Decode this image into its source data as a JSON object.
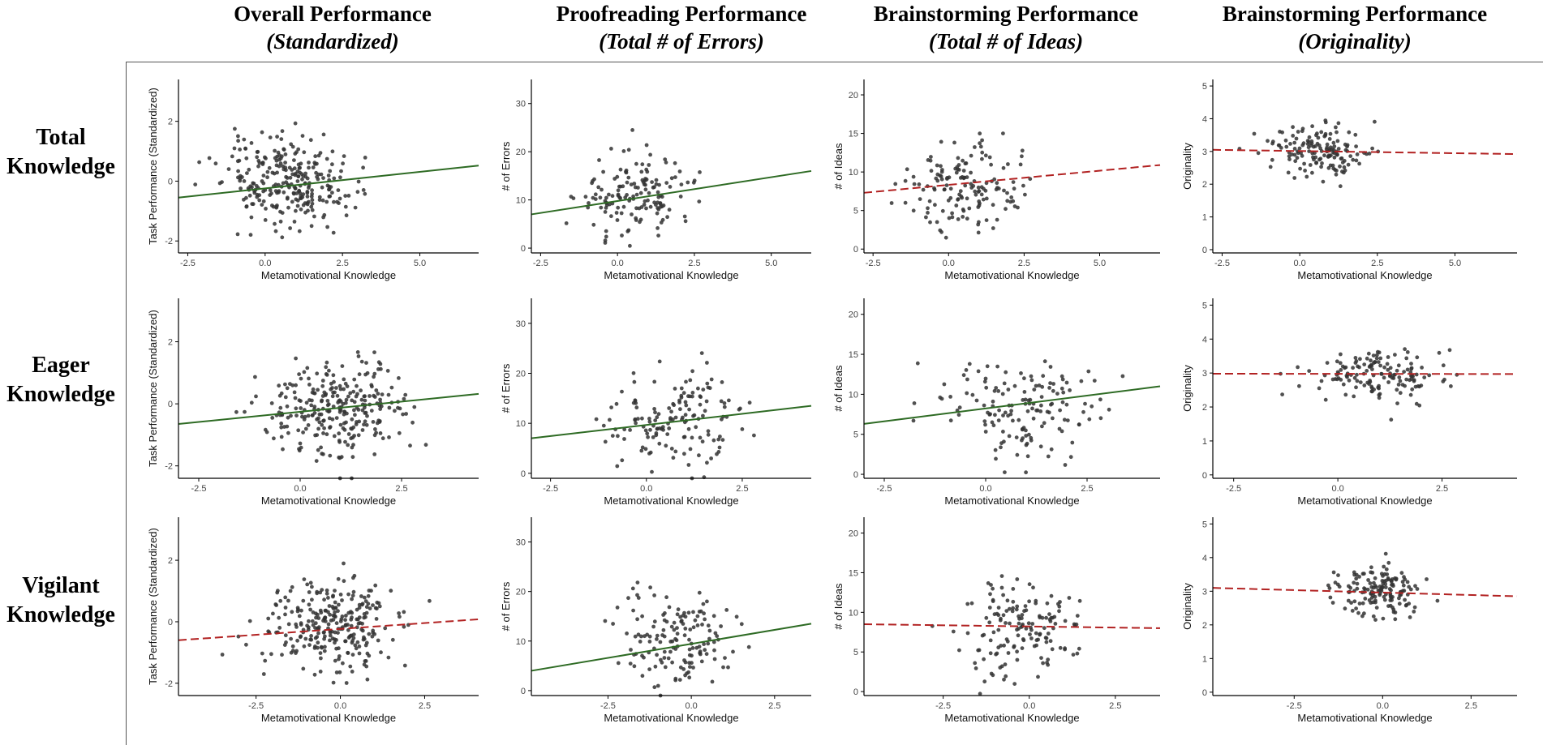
{
  "column_headers": [
    {
      "line1": "Overall Performance",
      "line2": "(Standardized)"
    },
    {
      "line1": "Proofreading Performance",
      "line2": "(Total # of Errors)"
    },
    {
      "line1": "Brainstorming Performance",
      "line2": "(Total # of Ideas)"
    },
    {
      "line1": "Brainstorming Performance",
      "line2": "(Originality)"
    }
  ],
  "row_headers": [
    {
      "line1": "Total",
      "line2": "Knowledge"
    },
    {
      "line1": "Eager",
      "line2": "Knowledge"
    },
    {
      "line1": "Vigilant",
      "line2": "Knowledge"
    }
  ],
  "colors": {
    "significant": "#2e6b24",
    "nonsignificant": "#b22222",
    "point": "#333333",
    "axis": "#000000"
  },
  "chart_data": [
    {
      "id": "r0c0",
      "type": "scatter",
      "row": 0,
      "col": 0,
      "xlabel": "Metamotivational Knowledge",
      "ylabel": "Task Performance (Standardized)",
      "xlim": [
        -2.8,
        6.9
      ],
      "ylim": [
        -2.4,
        3.4
      ],
      "xticks": [
        -2.5,
        0,
        2.5,
        5
      ],
      "xtick_labels": [
        "-2.5",
        "0.0",
        "2.5",
        "5.0"
      ],
      "yticks": [
        -2,
        0,
        2
      ],
      "ytick_labels": [
        "-2",
        "0",
        "2"
      ],
      "fit": {
        "x": [
          -2.8,
          6.9
        ],
        "y": [
          -0.55,
          0.52
        ],
        "style": "solid",
        "significant": true
      },
      "n": 280,
      "xmean": 0.7,
      "xsd": 1.3,
      "ymean": -0.05,
      "ysd": 1.0,
      "seed": 11
    },
    {
      "id": "r0c1",
      "type": "scatter",
      "row": 0,
      "col": 1,
      "xlabel": "Metamotivational Knowledge",
      "ylabel": "# of Errors",
      "xlim": [
        -2.8,
        6.3
      ],
      "ylim": [
        -1,
        35
      ],
      "xticks": [
        -2.5,
        0,
        2.5,
        5
      ],
      "xtick_labels": [
        "-2.5",
        "0.0",
        "2.5",
        "5.0"
      ],
      "yticks": [
        0,
        10,
        20,
        30
      ],
      "ytick_labels": [
        "0",
        "10",
        "20",
        "30"
      ],
      "fit": {
        "x": [
          -2.8,
          6.3
        ],
        "y": [
          7.0,
          16.0
        ],
        "style": "solid",
        "significant": true
      },
      "n": 150,
      "xmean": 0.6,
      "xsd": 1.2,
      "ymean": 11,
      "ysd": 6,
      "seed": 23
    },
    {
      "id": "r0c2",
      "type": "scatter",
      "row": 0,
      "col": 2,
      "xlabel": "Metamotivational Knowledge",
      "ylabel": "# of Ideas",
      "xlim": [
        -2.8,
        7.0
      ],
      "ylim": [
        -0.5,
        22
      ],
      "xticks": [
        -2.5,
        0,
        2.5,
        5
      ],
      "xtick_labels": [
        "-2.5",
        "0.0",
        "2.5",
        "5.0"
      ],
      "yticks": [
        0,
        5,
        10,
        15,
        20
      ],
      "ytick_labels": [
        "0",
        "5",
        "10",
        "15",
        "20"
      ],
      "fit": {
        "x": [
          -2.8,
          7.0
        ],
        "y": [
          7.3,
          10.9
        ],
        "style": "dashed",
        "significant": false
      },
      "n": 150,
      "xmean": 0.6,
      "xsd": 1.2,
      "ymean": 8,
      "ysd": 4,
      "seed": 37
    },
    {
      "id": "r0c3",
      "type": "scatter",
      "row": 0,
      "col": 3,
      "xlabel": "Metamotivational Knowledge",
      "ylabel": "Originality",
      "xlim": [
        -2.8,
        7.0
      ],
      "ylim": [
        -0.1,
        5.2
      ],
      "xticks": [
        -2.5,
        0,
        2.5,
        5
      ],
      "xtick_labels": [
        "-2.5",
        "0.0",
        "2.5",
        "5.0"
      ],
      "yticks": [
        0,
        1,
        2,
        3,
        4,
        5
      ],
      "ytick_labels": [
        "0",
        "1",
        "2",
        "3",
        "4",
        "5"
      ],
      "fit": {
        "x": [
          -2.8,
          7.0
        ],
        "y": [
          3.05,
          2.92
        ],
        "style": "dashed",
        "significant": false
      },
      "n": 150,
      "xmean": 0.6,
      "xsd": 1.1,
      "ymean": 3.0,
      "ysd": 0.5,
      "seed": 41
    },
    {
      "id": "r1c0",
      "type": "scatter",
      "row": 1,
      "col": 0,
      "xlabel": "Metamotivational Knowledge",
      "ylabel": "Task Performance (Standardized)",
      "xlim": [
        -3.0,
        4.4
      ],
      "ylim": [
        -2.4,
        3.4
      ],
      "xticks": [
        -2.5,
        0,
        2.5
      ],
      "xtick_labels": [
        "-2.5",
        "0.0",
        "2.5"
      ],
      "yticks": [
        -2,
        0,
        2
      ],
      "ytick_labels": [
        "-2",
        "0",
        "2"
      ],
      "fit": {
        "x": [
          -3.0,
          4.4
        ],
        "y": [
          -0.65,
          0.32
        ],
        "style": "solid",
        "significant": true
      },
      "n": 280,
      "xmean": 0.9,
      "xsd": 1.2,
      "ymean": -0.05,
      "ysd": 1.0,
      "seed": 53
    },
    {
      "id": "r1c1",
      "type": "scatter",
      "row": 1,
      "col": 1,
      "xlabel": "Metamotivational Knowledge",
      "ylabel": "# of Errors",
      "xlim": [
        -3.0,
        4.3
      ],
      "ylim": [
        -1,
        35
      ],
      "xticks": [
        -2.5,
        0,
        2.5
      ],
      "xtick_labels": [
        "-2.5",
        "0.0",
        "2.5"
      ],
      "yticks": [
        0,
        10,
        20,
        30
      ],
      "ytick_labels": [
        "0",
        "10",
        "20",
        "30"
      ],
      "fit": {
        "x": [
          -3.0,
          4.3
        ],
        "y": [
          7.0,
          13.5
        ],
        "style": "solid",
        "significant": true
      },
      "n": 150,
      "xmean": 0.9,
      "xsd": 1.2,
      "ymean": 11,
      "ysd": 6,
      "seed": 67
    },
    {
      "id": "r1c2",
      "type": "scatter",
      "row": 1,
      "col": 2,
      "xlabel": "Metamotivational Knowledge",
      "ylabel": "# of Ideas",
      "xlim": [
        -3.0,
        4.3
      ],
      "ylim": [
        -0.5,
        22
      ],
      "xticks": [
        -2.5,
        0,
        2.5
      ],
      "xtick_labels": [
        "-2.5",
        "0.0",
        "2.5"
      ],
      "yticks": [
        0,
        5,
        10,
        15,
        20
      ],
      "ytick_labels": [
        "0",
        "5",
        "10",
        "15",
        "20"
      ],
      "fit": {
        "x": [
          -3.0,
          4.3
        ],
        "y": [
          6.3,
          11.0
        ],
        "style": "solid",
        "significant": true
      },
      "n": 150,
      "xmean": 0.9,
      "xsd": 1.2,
      "ymean": 8,
      "ysd": 4,
      "seed": 71
    },
    {
      "id": "r1c3",
      "type": "scatter",
      "row": 1,
      "col": 3,
      "xlabel": "Metamotivational Knowledge",
      "ylabel": "Originality",
      "xlim": [
        -3.0,
        4.3
      ],
      "ylim": [
        -0.1,
        5.2
      ],
      "xticks": [
        -2.5,
        0,
        2.5
      ],
      "xtick_labels": [
        "-2.5",
        "0.0",
        "2.5"
      ],
      "yticks": [
        0,
        1,
        2,
        3,
        4,
        5
      ],
      "ytick_labels": [
        "0",
        "1",
        "2",
        "3",
        "4",
        "5"
      ],
      "fit": {
        "x": [
          -3.0,
          4.3
        ],
        "y": [
          2.98,
          2.97
        ],
        "style": "dashed",
        "significant": false
      },
      "n": 150,
      "xmean": 0.9,
      "xsd": 1.1,
      "ymean": 3.0,
      "ysd": 0.5,
      "seed": 83
    },
    {
      "id": "r2c0",
      "type": "scatter",
      "row": 2,
      "col": 0,
      "xlabel": "Metamotivational Knowledge",
      "ylabel": "Task Performance (Standardized)",
      "xlim": [
        -4.8,
        4.1
      ],
      "ylim": [
        -2.4,
        3.4
      ],
      "xticks": [
        -2.5,
        0,
        2.5
      ],
      "xtick_labels": [
        "-2.5",
        "0.0",
        "2.5"
      ],
      "yticks": [
        -2,
        0,
        2
      ],
      "ytick_labels": [
        "-2",
        "0",
        "2"
      ],
      "fit": {
        "x": [
          -4.8,
          4.1
        ],
        "y": [
          -0.6,
          0.08
        ],
        "style": "dashed",
        "significant": false
      },
      "n": 280,
      "xmean": -0.3,
      "xsd": 1.3,
      "ymean": -0.1,
      "ysd": 1.0,
      "seed": 97
    },
    {
      "id": "r2c1",
      "type": "scatter",
      "row": 2,
      "col": 1,
      "xlabel": "Metamotivational Knowledge",
      "ylabel": "# of Errors",
      "xlim": [
        -4.8,
        3.6
      ],
      "ylim": [
        -1,
        35
      ],
      "xticks": [
        -2.5,
        0,
        2.5
      ],
      "xtick_labels": [
        "-2.5",
        "0.0",
        "2.5"
      ],
      "yticks": [
        0,
        10,
        20,
        30
      ],
      "ytick_labels": [
        "0",
        "10",
        "20",
        "30"
      ],
      "fit": {
        "x": [
          -4.8,
          3.6
        ],
        "y": [
          4.0,
          13.5
        ],
        "style": "solid",
        "significant": true
      },
      "n": 150,
      "xmean": -0.3,
      "xsd": 1.3,
      "ymean": 11,
      "ysd": 6,
      "seed": 101
    },
    {
      "id": "r2c2",
      "type": "scatter",
      "row": 2,
      "col": 2,
      "xlabel": "Metamotivational Knowledge",
      "ylabel": "# of Ideas",
      "xlim": [
        -4.8,
        3.8
      ],
      "ylim": [
        -0.5,
        22
      ],
      "xticks": [
        -2.5,
        0,
        2.5
      ],
      "xtick_labels": [
        "-2.5",
        "0.0",
        "2.5"
      ],
      "yticks": [
        0,
        5,
        10,
        15,
        20
      ],
      "ytick_labels": [
        "0",
        "5",
        "10",
        "15",
        "20"
      ],
      "fit": {
        "x": [
          -4.8,
          3.8
        ],
        "y": [
          8.5,
          8.0
        ],
        "style": "dashed",
        "significant": false
      },
      "n": 150,
      "xmean": -0.3,
      "xsd": 1.2,
      "ymean": 8,
      "ysd": 4,
      "seed": 113
    },
    {
      "id": "r2c3",
      "type": "scatter",
      "row": 2,
      "col": 3,
      "xlabel": "Metamotivational Knowledge",
      "ylabel": "Originality",
      "xlim": [
        -4.8,
        3.8
      ],
      "ylim": [
        -0.1,
        5.2
      ],
      "xticks": [
        -2.5,
        0,
        2.5
      ],
      "xtick_labels": [
        "-2.5",
        "0.0",
        "2.5"
      ],
      "yticks": [
        0,
        1,
        2,
        3,
        4,
        5
      ],
      "ytick_labels": [
        "0",
        "1",
        "2",
        "3",
        "4",
        "5"
      ],
      "fit": {
        "x": [
          -4.8,
          3.8
        ],
        "y": [
          3.1,
          2.85
        ],
        "style": "dashed",
        "significant": false
      },
      "n": 150,
      "xmean": -0.1,
      "xsd": 0.9,
      "ymean": 3.0,
      "ysd": 0.5,
      "seed": 127
    }
  ]
}
